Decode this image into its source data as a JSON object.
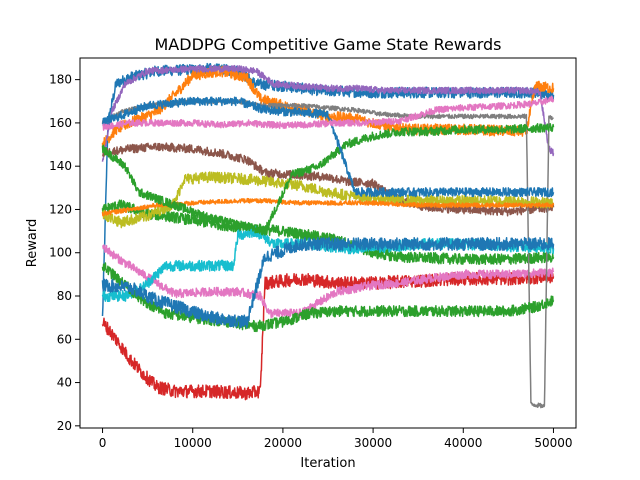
{
  "chart_data": {
    "type": "line",
    "title": "MADDPG Competitive Game State Rewards",
    "xlabel": "Iteration",
    "ylabel": "Reward",
    "xlim": [
      -2500,
      52500
    ],
    "ylim": [
      19,
      190
    ],
    "xticks": [
      0,
      10000,
      20000,
      30000,
      40000,
      50000
    ],
    "yticks": [
      20,
      40,
      60,
      80,
      100,
      120,
      140,
      160,
      180
    ],
    "grid": false,
    "legend": "none",
    "series": [
      {
        "color": "#1f77b4",
        "noise": 2.5,
        "points": [
          [
            0,
            70
          ],
          [
            600,
            160
          ],
          [
            1500,
            178
          ],
          [
            3000,
            181
          ],
          [
            6000,
            184
          ],
          [
            12000,
            185
          ],
          [
            15000,
            184
          ],
          [
            17000,
            178
          ],
          [
            20000,
            177
          ],
          [
            24000,
            175
          ],
          [
            30000,
            174
          ],
          [
            40000,
            174
          ],
          [
            48000,
            174
          ],
          [
            49500,
            173
          ],
          [
            50000,
            173
          ]
        ]
      },
      {
        "color": "#ff7f0e",
        "noise": 2.5,
        "points": [
          [
            0,
            150
          ],
          [
            1500,
            157
          ],
          [
            3000,
            160
          ],
          [
            6000,
            165
          ],
          [
            8000,
            173
          ],
          [
            10000,
            182
          ],
          [
            13000,
            184
          ],
          [
            16000,
            181
          ],
          [
            17500,
            171
          ],
          [
            20000,
            168
          ],
          [
            23000,
            165
          ],
          [
            25000,
            163
          ],
          [
            28000,
            162
          ],
          [
            30000,
            160
          ],
          [
            34000,
            157
          ],
          [
            40000,
            157
          ],
          [
            47000,
            156
          ],
          [
            48000,
            177
          ],
          [
            50000,
            176
          ]
        ]
      },
      {
        "color": "#2ca02c",
        "noise": 2.5,
        "points": [
          [
            0,
            120
          ],
          [
            2000,
            122
          ],
          [
            5000,
            118
          ],
          [
            7000,
            117
          ],
          [
            10000,
            115
          ],
          [
            13000,
            113
          ],
          [
            15000,
            112
          ],
          [
            17000,
            111
          ],
          [
            20000,
            110
          ],
          [
            23000,
            108
          ],
          [
            26000,
            106
          ],
          [
            30000,
            100
          ],
          [
            33000,
            98
          ],
          [
            40000,
            97
          ],
          [
            45000,
            97
          ],
          [
            50000,
            98
          ]
        ]
      },
      {
        "color": "#d62728",
        "noise": 3,
        "points": [
          [
            0,
            68
          ],
          [
            1500,
            60
          ],
          [
            3000,
            51
          ],
          [
            4500,
            44
          ],
          [
            6000,
            38
          ],
          [
            8000,
            36
          ],
          [
            12000,
            36
          ],
          [
            16000,
            35
          ],
          [
            17500,
            36
          ],
          [
            18000,
            86
          ],
          [
            22000,
            88
          ],
          [
            26000,
            86
          ],
          [
            30000,
            86
          ],
          [
            35000,
            87
          ],
          [
            40000,
            88
          ],
          [
            45000,
            88
          ],
          [
            50000,
            89
          ]
        ]
      },
      {
        "color": "#9467bd",
        "noise": 1.5,
        "points": [
          [
            0,
            142
          ],
          [
            1000,
            165
          ],
          [
            2500,
            178
          ],
          [
            5000,
            184
          ],
          [
            10000,
            185
          ],
          [
            15000,
            185
          ],
          [
            17000,
            184
          ],
          [
            19000,
            178
          ],
          [
            22000,
            177
          ],
          [
            25000,
            176
          ],
          [
            28000,
            176
          ],
          [
            31000,
            175
          ],
          [
            35000,
            175
          ],
          [
            40000,
            175
          ],
          [
            47000,
            175
          ],
          [
            48500,
            174
          ],
          [
            49500,
            148
          ],
          [
            50000,
            146
          ]
        ]
      },
      {
        "color": "#8c564b",
        "noise": 2,
        "points": [
          [
            0,
            146
          ],
          [
            3000,
            148
          ],
          [
            6000,
            149
          ],
          [
            10000,
            148
          ],
          [
            13000,
            146
          ],
          [
            16000,
            143
          ],
          [
            18000,
            137
          ],
          [
            21000,
            136
          ],
          [
            25000,
            135
          ],
          [
            27000,
            133
          ],
          [
            30000,
            132
          ],
          [
            33000,
            124
          ],
          [
            36000,
            121
          ],
          [
            40000,
            120
          ],
          [
            45000,
            119
          ],
          [
            50000,
            121
          ]
        ]
      },
      {
        "color": "#e377c2",
        "noise": 2,
        "points": [
          [
            0,
            103
          ],
          [
            1500,
            98
          ],
          [
            3000,
            94
          ],
          [
            6000,
            86
          ],
          [
            8000,
            81
          ],
          [
            12000,
            82
          ],
          [
            15000,
            82
          ],
          [
            17500,
            80
          ],
          [
            18500,
            72
          ],
          [
            22000,
            72
          ],
          [
            26000,
            82
          ],
          [
            30000,
            85
          ],
          [
            33000,
            86
          ],
          [
            36000,
            88
          ],
          [
            40000,
            90
          ],
          [
            45000,
            90
          ],
          [
            50000,
            91
          ]
        ]
      },
      {
        "color": "#7f7f7f",
        "noise": 1,
        "points": [
          [
            0,
            160
          ],
          [
            2000,
            165
          ],
          [
            5000,
            168
          ],
          [
            10000,
            170
          ],
          [
            15000,
            170
          ],
          [
            18000,
            168
          ],
          [
            22000,
            168
          ],
          [
            25000,
            167
          ],
          [
            28000,
            166
          ],
          [
            31000,
            164
          ],
          [
            35000,
            163
          ],
          [
            40000,
            163
          ],
          [
            47000,
            163
          ],
          [
            47500,
            30
          ],
          [
            49000,
            29
          ],
          [
            49500,
            163
          ],
          [
            50000,
            162
          ]
        ]
      },
      {
        "color": "#bcbd22",
        "noise": 2.5,
        "points": [
          [
            0,
            118
          ],
          [
            2000,
            114
          ],
          [
            5000,
            117
          ],
          [
            8000,
            123
          ],
          [
            9000,
            134
          ],
          [
            12000,
            135
          ],
          [
            16000,
            134
          ],
          [
            18000,
            133
          ],
          [
            22000,
            131
          ],
          [
            25000,
            128
          ],
          [
            28000,
            126
          ],
          [
            31000,
            125
          ],
          [
            35000,
            124
          ],
          [
            40000,
            124
          ],
          [
            45000,
            124
          ],
          [
            50000,
            123
          ]
        ]
      },
      {
        "color": "#17becf",
        "noise": 2.5,
        "points": [
          [
            0,
            80
          ],
          [
            2500,
            80
          ],
          [
            4500,
            84
          ],
          [
            7000,
            94
          ],
          [
            10000,
            94
          ],
          [
            13000,
            94
          ],
          [
            14500,
            94
          ],
          [
            15000,
            108
          ],
          [
            17000,
            110
          ],
          [
            19000,
            104
          ],
          [
            23000,
            104
          ],
          [
            27000,
            102
          ],
          [
            30000,
            102
          ],
          [
            35000,
            104
          ],
          [
            40000,
            104
          ],
          [
            45000,
            103
          ],
          [
            50000,
            102
          ]
        ]
      },
      {
        "color": "#2ca02c",
        "noise": 2.5,
        "points": [
          [
            0,
            94
          ],
          [
            2500,
            85
          ],
          [
            4500,
            78
          ],
          [
            7000,
            72
          ],
          [
            10000,
            70
          ],
          [
            14000,
            68
          ],
          [
            17000,
            66
          ],
          [
            20000,
            68
          ],
          [
            23000,
            72
          ],
          [
            26000,
            73
          ],
          [
            30000,
            73
          ],
          [
            35000,
            73
          ],
          [
            40000,
            73
          ],
          [
            45000,
            73
          ],
          [
            48000,
            75
          ],
          [
            50000,
            78
          ]
        ]
      },
      {
        "color": "#1f77b4",
        "noise": 3,
        "points": [
          [
            0,
            85
          ],
          [
            3000,
            84
          ],
          [
            6000,
            78
          ],
          [
            9000,
            74
          ],
          [
            12000,
            70
          ],
          [
            16000,
            68
          ],
          [
            18000,
            98
          ],
          [
            22000,
            104
          ],
          [
            26000,
            104
          ],
          [
            30000,
            104
          ],
          [
            35000,
            104
          ],
          [
            40000,
            104
          ],
          [
            45000,
            104
          ],
          [
            50000,
            104
          ]
        ]
      },
      {
        "color": "#ff7f0e",
        "noise": 1,
        "points": [
          [
            0,
            118
          ],
          [
            3000,
            120
          ],
          [
            6000,
            122
          ],
          [
            10000,
            123
          ],
          [
            15000,
            124
          ],
          [
            18000,
            124
          ],
          [
            22000,
            123
          ],
          [
            26000,
            123
          ],
          [
            30000,
            123
          ],
          [
            35000,
            122
          ],
          [
            40000,
            122
          ],
          [
            45000,
            122
          ],
          [
            50000,
            122
          ]
        ]
      },
      {
        "color": "#2ca02c",
        "noise": 2,
        "points": [
          [
            0,
            148
          ],
          [
            2500,
            140
          ],
          [
            4000,
            128
          ],
          [
            8000,
            122
          ],
          [
            12000,
            116
          ],
          [
            16000,
            112
          ],
          [
            18000,
            110
          ],
          [
            21000,
            136
          ],
          [
            24000,
            140
          ],
          [
            27000,
            150
          ],
          [
            30000,
            154
          ],
          [
            33000,
            156
          ],
          [
            36000,
            156
          ],
          [
            40000,
            157
          ],
          [
            45000,
            157
          ],
          [
            50000,
            158
          ]
        ]
      },
      {
        "color": "#1f77b4",
        "noise": 2,
        "points": [
          [
            0,
            160
          ],
          [
            5000,
            168
          ],
          [
            10000,
            170
          ],
          [
            15000,
            170
          ],
          [
            18000,
            166
          ],
          [
            21000,
            165
          ],
          [
            25000,
            164
          ],
          [
            28000,
            128
          ],
          [
            32000,
            128
          ],
          [
            36000,
            128
          ],
          [
            40000,
            128
          ],
          [
            45000,
            128
          ],
          [
            50000,
            128
          ]
        ]
      },
      {
        "color": "#e377c2",
        "noise": 1.5,
        "points": [
          [
            0,
            158
          ],
          [
            3000,
            160
          ],
          [
            6000,
            160
          ],
          [
            10000,
            160
          ],
          [
            13000,
            159
          ],
          [
            16000,
            160
          ],
          [
            19000,
            159
          ],
          [
            22000,
            159
          ],
          [
            26000,
            160
          ],
          [
            29000,
            160
          ],
          [
            33000,
            161
          ],
          [
            37000,
            166
          ],
          [
            40000,
            167
          ],
          [
            45000,
            168
          ],
          [
            48000,
            169
          ],
          [
            50000,
            171
          ]
        ]
      }
    ]
  }
}
